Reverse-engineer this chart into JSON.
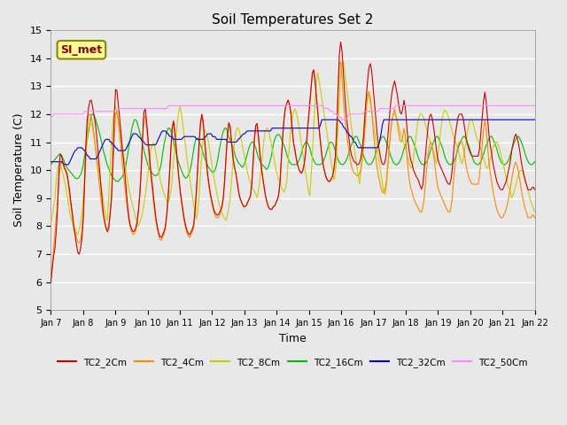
{
  "title": "Soil Temperatures Set 2",
  "xlabel": "Time",
  "ylabel": "Soil Temperature (C)",
  "ylim": [
    5.0,
    15.0
  ],
  "yticks": [
    5.0,
    6.0,
    7.0,
    8.0,
    9.0,
    10.0,
    11.0,
    12.0,
    13.0,
    14.0,
    15.0
  ],
  "xtick_labels": [
    "Jan 7",
    "Jan 8",
    "Jan 9",
    "Jan 10",
    "Jan 11",
    "Jan 12",
    "Jan 13",
    "Jan 14",
    "Jan 15",
    "Jan 16",
    "Jan 17",
    "Jan 18",
    "Jan 19",
    "Jan 20",
    "Jan 21",
    "Jan 22"
  ],
  "bg_color": "#e8e8e8",
  "plot_bg_color": "#e8e8e8",
  "grid_color": "#ffffff",
  "annotation_text": "SI_met",
  "annotation_color": "#8b0000",
  "annotation_bg": "#ffff99",
  "series": [
    {
      "label": "TC2_2Cm",
      "color": "#cc0000"
    },
    {
      "label": "TC2_4Cm",
      "color": "#ff8800"
    },
    {
      "label": "TC2_8Cm",
      "color": "#cccc00"
    },
    {
      "label": "TC2_16Cm",
      "color": "#00bb00"
    },
    {
      "label": "TC2_32Cm",
      "color": "#0000cc"
    },
    {
      "label": "TC2_50Cm",
      "color": "#ff88ff"
    }
  ]
}
